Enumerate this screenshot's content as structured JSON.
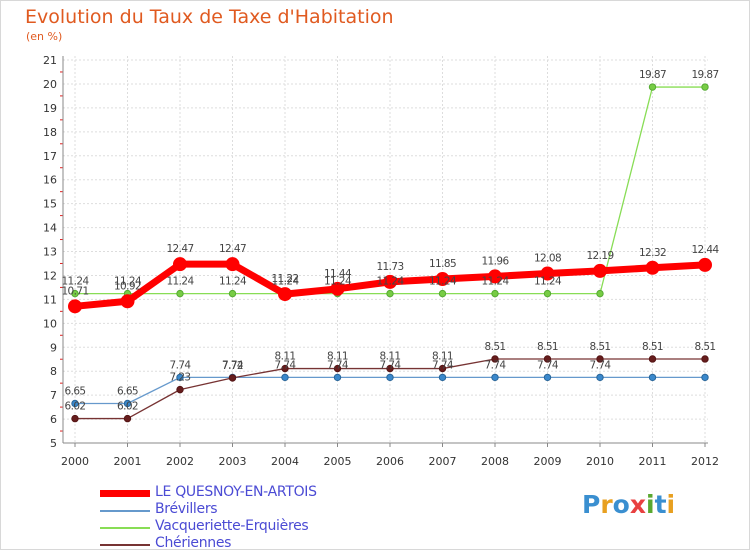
{
  "title": "Evolution du Taux de Taxe d'Habitation",
  "subtitle": "(en %)",
  "logo": {
    "text": "Proxiti",
    "colors": [
      "#3a8fd0",
      "#e8a020",
      "#3a8fd0",
      "#e84040",
      "#5aa830",
      "#3a8fd0",
      "#e8a020"
    ]
  },
  "chart_data": {
    "type": "line",
    "title": "Evolution du Taux de Taxe d'Habitation",
    "ylabel": "(en %)",
    "xlabel": "",
    "ylim": [
      5,
      21
    ],
    "yticks": [
      "5",
      "6",
      "7",
      "8",
      "9",
      "10",
      "11",
      "12",
      "13",
      "14",
      "15",
      "16",
      "17",
      "18",
      "19",
      "20",
      "21"
    ],
    "x": [
      "2000",
      "2001",
      "2002",
      "2003",
      "2004",
      "2005",
      "2006",
      "2007",
      "2008",
      "2009",
      "2010",
      "2011",
      "2012"
    ],
    "grid": true,
    "legend_position": "bottom-left",
    "series": [
      {
        "name": "LE QUESNOY-EN-ARTOIS",
        "color": "#ff0000",
        "values": [
          10.71,
          10.92,
          12.47,
          12.47,
          11.22,
          11.44,
          11.73,
          11.85,
          11.96,
          12.08,
          12.19,
          12.32,
          12.44
        ],
        "labels": [
          "10.71",
          "10.92",
          "12.47",
          "12.47",
          "11.22",
          "11.44",
          "11.73",
          "11.85",
          "11.96",
          "12.08",
          "12.19",
          "12.32",
          "12.44"
        ]
      },
      {
        "name": "Brévillers",
        "color": "#6699cc",
        "values": [
          6.65,
          6.65,
          7.74,
          7.74,
          7.74,
          7.74,
          7.74,
          7.74,
          7.74,
          7.74,
          7.74,
          7.74,
          7.74
        ],
        "labels": [
          "6.65",
          "6.65",
          "7.74",
          "7.74",
          "7.74",
          "7.74",
          "7.74",
          "7.74",
          "7.74",
          "7.74",
          "7.74",
          "",
          ""
        ]
      },
      {
        "name": "Vacqueriette-Erquières",
        "color": "#88dd55",
        "values": [
          11.24,
          11.24,
          11.24,
          11.24,
          11.24,
          11.24,
          11.24,
          11.24,
          11.24,
          11.24,
          11.24,
          19.87,
          19.87
        ],
        "labels": [
          "11.24",
          "11.24",
          "11.24",
          "11.24",
          "11.24",
          "11.24",
          "11.24",
          "11.24",
          "11.24",
          "11.24",
          "",
          "19.87",
          "19.87"
        ]
      },
      {
        "name": "Chériennes",
        "color": "#773333",
        "values": [
          6.02,
          6.02,
          7.23,
          7.72,
          8.11,
          8.11,
          8.11,
          8.11,
          8.51,
          8.51,
          8.51,
          8.51,
          8.51
        ],
        "labels": [
          "6.02",
          "6.02",
          "7.23",
          "7.72",
          "8.11",
          "8.11",
          "8.11",
          "8.11",
          "8.51",
          "8.51",
          "8.51",
          "8.51",
          "8.51"
        ]
      }
    ]
  }
}
